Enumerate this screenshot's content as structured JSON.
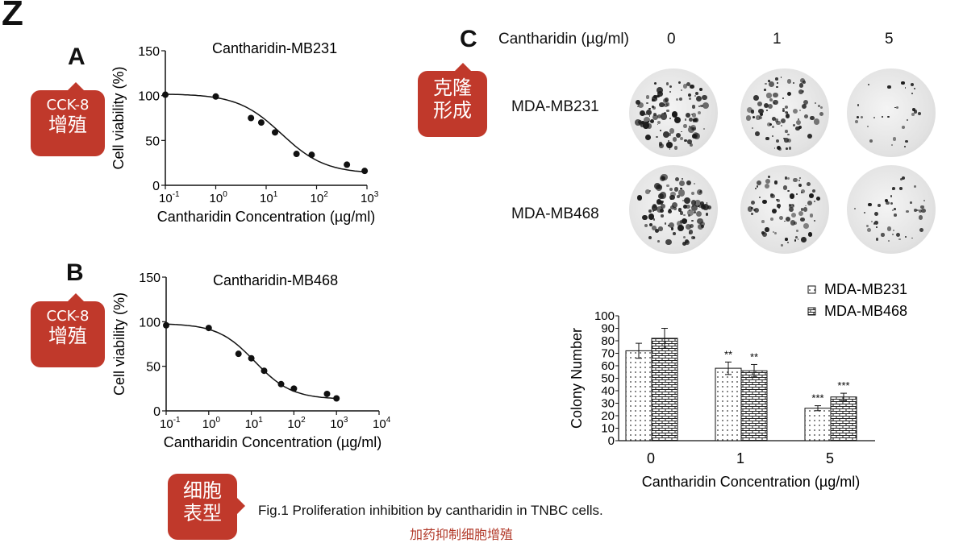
{
  "corner_mark": "Z",
  "panelA": {
    "letter": "A",
    "callout": [
      "CCK-8",
      "增殖"
    ],
    "chart_data": {
      "type": "scatter",
      "title": "Cantharidin-MB231",
      "xlabel": "Cantharidin Concentration (µg/ml)",
      "ylabel": "Cell viability (%)",
      "x_scale": "log",
      "xlim": [
        0.1,
        1000
      ],
      "ylim": [
        0,
        150
      ],
      "y_ticks": [
        "0",
        "50",
        "100",
        "150"
      ],
      "x_ticks": [
        {
          "base": "10",
          "exp": "-1"
        },
        {
          "base": "10",
          "exp": "0"
        },
        {
          "base": "10",
          "exp": "1"
        },
        {
          "base": "10",
          "exp": "2"
        },
        {
          "base": "10",
          "exp": "3"
        }
      ],
      "x": [
        0.1,
        1,
        5,
        8,
        15,
        40,
        80,
        400,
        900
      ],
      "y": [
        101,
        99,
        75,
        70,
        59,
        35,
        34,
        23,
        16
      ],
      "fit_curve": {
        "top": 102,
        "bottom": 13,
        "ic50": 20,
        "hill": 1.0
      }
    }
  },
  "panelB": {
    "letter": "B",
    "callout": [
      "CCK-8",
      "增殖"
    ],
    "chart_data": {
      "type": "scatter",
      "title": "Cantharidin-MB468",
      "xlabel": "Cantharidin Concentration (µg/ml)",
      "ylabel": "Cell viability (%)",
      "x_scale": "log",
      "xlim": [
        0.1,
        10000
      ],
      "ylim": [
        0,
        150
      ],
      "y_ticks": [
        "0",
        "50",
        "100",
        "150"
      ],
      "x_ticks": [
        {
          "base": "10",
          "exp": "-1"
        },
        {
          "base": "10",
          "exp": "0"
        },
        {
          "base": "10",
          "exp": "1"
        },
        {
          "base": "10",
          "exp": "2"
        },
        {
          "base": "10",
          "exp": "3"
        },
        {
          "base": "10",
          "exp": "4"
        }
      ],
      "x": [
        0.1,
        1,
        5,
        10,
        20,
        50,
        100,
        600,
        1000
      ],
      "y": [
        96,
        93,
        64,
        59,
        45,
        30,
        25,
        19,
        14
      ],
      "fit_curve": {
        "top": 98,
        "bottom": 13,
        "ic50": 12,
        "hill": 1.0
      }
    }
  },
  "panelC": {
    "letter": "C",
    "callout": [
      "克隆",
      "形成"
    ],
    "header_label": "Cantharidin (µg/ml)",
    "doses": [
      "0",
      "1",
      "5"
    ],
    "rows": [
      "MDA-MB231",
      "MDA-MB468"
    ],
    "colony_density": [
      [
        1.0,
        0.75,
        0.25
      ],
      [
        1.0,
        0.7,
        0.4
      ]
    ],
    "chart_data": {
      "type": "bar",
      "categories": [
        "0",
        "1",
        "5"
      ],
      "xlabel": "Cantharidin Concentration (µg/ml)",
      "ylabel": "Colony Number",
      "ylim": [
        0,
        100
      ],
      "y_ticks": [
        "0",
        "10",
        "20",
        "30",
        "40",
        "50",
        "60",
        "70",
        "80",
        "90",
        "100"
      ],
      "series": [
        {
          "name": "MDA-MB231",
          "values": [
            72,
            58,
            26
          ],
          "errors": [
            6,
            5,
            2
          ],
          "significance": [
            "",
            "**",
            "***"
          ]
        },
        {
          "name": "MDA-MB468",
          "values": [
            82,
            56,
            35
          ],
          "errors": [
            8,
            5,
            3
          ],
          "significance": [
            "",
            "**",
            "***"
          ]
        }
      ],
      "legend": "top-right"
    }
  },
  "caption": {
    "callout": [
      "细胞",
      "表型"
    ],
    "text": "Fig.1 Proliferation inhibition   by cantharidin in TNBC cells.",
    "chinese": "加药抑制细胞增殖"
  }
}
